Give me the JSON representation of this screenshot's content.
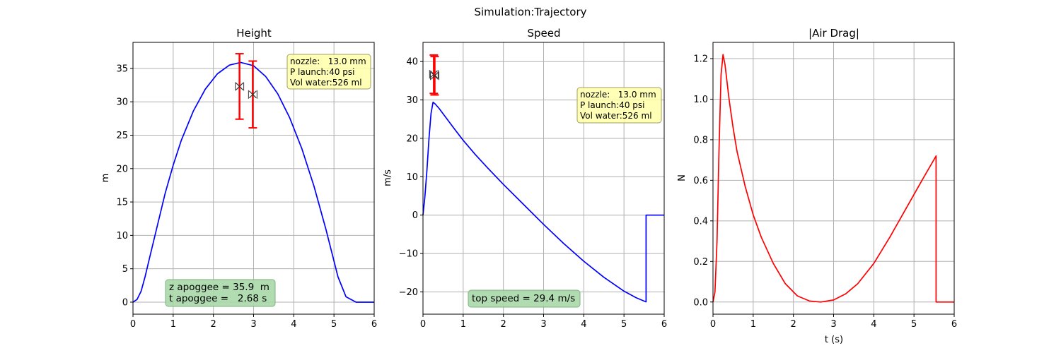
{
  "suptitle": "Simulation:Trajectory",
  "colors": {
    "blue": "#0000ff",
    "red": "#ff0000",
    "yellow_box": "#ffffa8",
    "green_box": "#a8d8a8"
  },
  "chart_data": [
    {
      "type": "line",
      "title": "Height",
      "xlabel": "",
      "ylabel": "m",
      "xlim": [
        0,
        6
      ],
      "ylim": [
        -1.8,
        38.9
      ],
      "xticks": [
        0,
        1,
        2,
        3,
        4,
        5,
        6
      ],
      "yticks": [
        0,
        5,
        10,
        15,
        20,
        25,
        30,
        35
      ],
      "grid": true,
      "series": [
        {
          "color": "blue",
          "x": [
            0,
            0.1,
            0.2,
            0.3,
            0.4,
            0.6,
            0.8,
            1.0,
            1.2,
            1.5,
            1.8,
            2.1,
            2.4,
            2.68,
            3.0,
            3.3,
            3.6,
            3.9,
            4.2,
            4.5,
            4.8,
            5.1,
            5.3,
            5.55,
            6.0
          ],
          "y": [
            0,
            0.4,
            1.6,
            3.8,
            6.3,
            11.3,
            16.3,
            20.5,
            24.2,
            28.6,
            31.9,
            34.2,
            35.5,
            35.9,
            35.4,
            33.8,
            31.2,
            27.6,
            23.0,
            17.4,
            10.9,
            3.8,
            0.8,
            0.0,
            0.0
          ]
        }
      ],
      "error_points": [
        {
          "x": 2.65,
          "y": 32.3,
          "err": 4.9
        },
        {
          "x": 2.98,
          "y": 31.1,
          "err": 5.0
        }
      ],
      "info_box": {
        "lines": [
          "nozzle:   13.0 mm",
          "P launch:40 psi",
          "Vol water:526 ml"
        ]
      },
      "summary_box": {
        "lines": [
          "z apoggee = 35.9  m",
          "t apoggee =   2.68 s"
        ]
      }
    },
    {
      "type": "line",
      "title": "Speed",
      "xlabel": "",
      "ylabel": "m/s",
      "xlim": [
        0,
        6
      ],
      "ylim": [
        -25.8,
        45.0
      ],
      "xticks": [
        0,
        1,
        2,
        3,
        4,
        5,
        6
      ],
      "yticks": [
        -20,
        -10,
        0,
        10,
        20,
        30,
        40
      ],
      "grid": true,
      "series": [
        {
          "color": "blue",
          "x": [
            0,
            0.05,
            0.1,
            0.15,
            0.2,
            0.25,
            0.3,
            0.4,
            0.6,
            0.8,
            1.0,
            1.3,
            1.6,
            2.0,
            2.5,
            3.0,
            3.5,
            4.0,
            4.5,
            5.0,
            5.3,
            5.55,
            5.55,
            6.0
          ],
          "y": [
            0,
            5,
            12,
            20,
            26.5,
            29.4,
            29.0,
            27.8,
            25.0,
            22.2,
            19.5,
            15.8,
            12.4,
            8.0,
            2.8,
            -2.4,
            -7.4,
            -12.0,
            -16.2,
            -19.8,
            -21.5,
            -22.6,
            0,
            0
          ]
        }
      ],
      "error_points": [
        {
          "x": 0.27,
          "y": 36.7,
          "err": 5.0
        },
        {
          "x": 0.29,
          "y": 36.3,
          "err": 5.0
        }
      ],
      "info_box": {
        "lines": [
          "nozzle:   13.0 mm",
          "P launch:40 psi",
          "Vol water:526 ml"
        ]
      },
      "summary_box": {
        "lines": [
          "top speed = 29.4 m/s"
        ]
      }
    },
    {
      "type": "line",
      "title": "|Air Drag|",
      "xlabel": "t (s)",
      "ylabel": "N",
      "xlim": [
        0,
        6
      ],
      "ylim": [
        -0.06,
        1.28
      ],
      "xticks": [
        0,
        1,
        2,
        3,
        4,
        5,
        6
      ],
      "yticks": [
        0.0,
        0.2,
        0.4,
        0.6,
        0.8,
        1.0,
        1.2
      ],
      "grid": true,
      "series": [
        {
          "color": "red",
          "x": [
            0,
            0.05,
            0.1,
            0.15,
            0.2,
            0.25,
            0.3,
            0.4,
            0.5,
            0.6,
            0.8,
            1.0,
            1.2,
            1.5,
            1.8,
            2.1,
            2.4,
            2.68,
            3.0,
            3.3,
            3.6,
            4.0,
            4.4,
            4.8,
            5.2,
            5.55,
            5.55,
            6.0
          ],
          "y": [
            0,
            0.05,
            0.3,
            0.75,
            1.12,
            1.22,
            1.17,
            1.0,
            0.86,
            0.74,
            0.57,
            0.43,
            0.32,
            0.19,
            0.09,
            0.03,
            0.005,
            0.0,
            0.01,
            0.04,
            0.09,
            0.19,
            0.32,
            0.46,
            0.6,
            0.72,
            0.0,
            0.0
          ]
        }
      ],
      "error_points": []
    }
  ]
}
